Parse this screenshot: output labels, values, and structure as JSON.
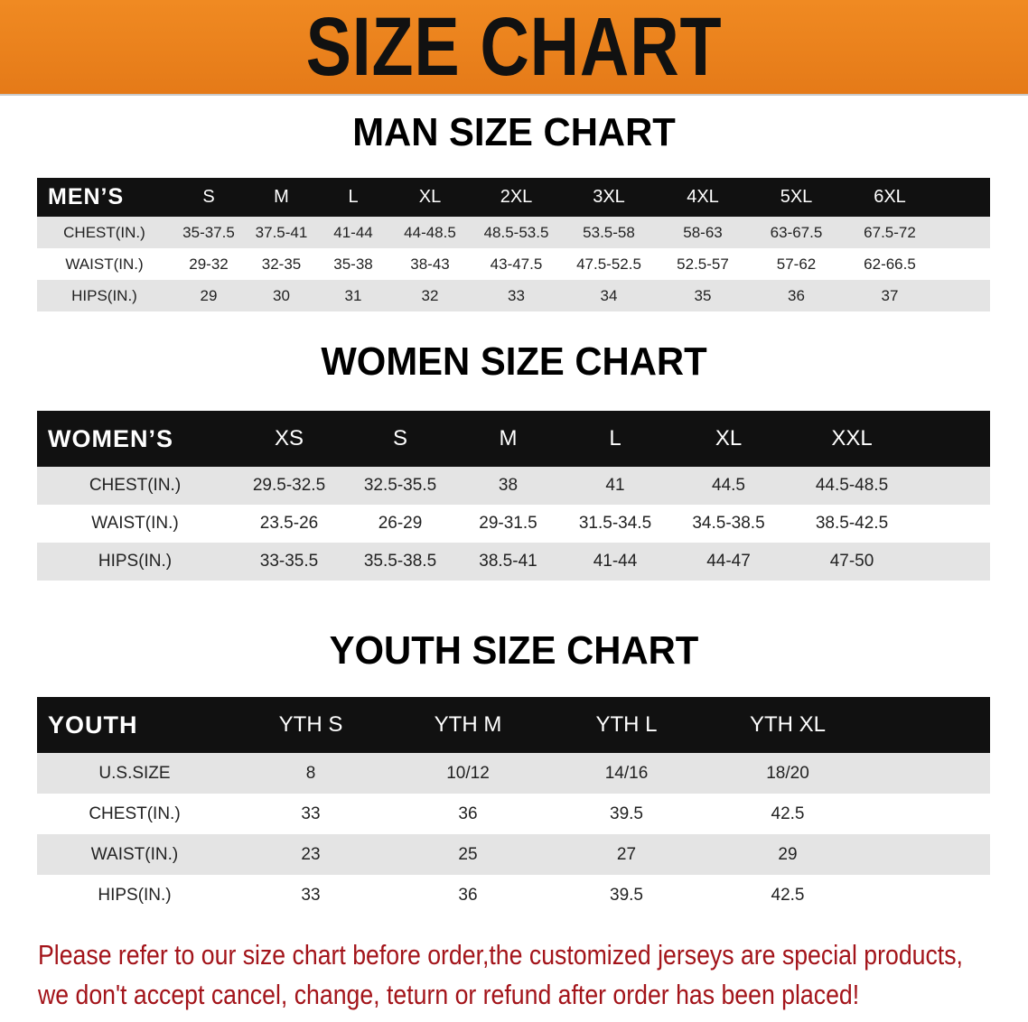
{
  "banner": {
    "title": "SIZE CHART",
    "color": "#e87e1f"
  },
  "men": {
    "title": "MAN SIZE CHART",
    "header": [
      "MEN’S",
      "S",
      "M",
      "L",
      "XL",
      "2XL",
      "3XL",
      "4XL",
      "5XL",
      "6XL"
    ],
    "rows": [
      [
        "CHEST(IN.)",
        "35-37.5",
        "37.5-41",
        "41-44",
        "44-48.5",
        "48.5-53.5",
        "53.5-58",
        "58-63",
        "63-67.5",
        "67.5-72"
      ],
      [
        "WAIST(IN.)",
        "29-32",
        "32-35",
        "35-38",
        "38-43",
        "43-47.5",
        "47.5-52.5",
        "52.5-57",
        "57-62",
        "62-66.5"
      ],
      [
        "HIPS(IN.)",
        "29",
        "30",
        "31",
        "32",
        "33",
        "34",
        "35",
        "36",
        "37"
      ]
    ]
  },
  "women": {
    "title": "WOMEN SIZE CHART",
    "header": [
      "WOMEN’S",
      "XS",
      "S",
      "M",
      "L",
      "XL",
      "XXL"
    ],
    "rows": [
      [
        "CHEST(IN.)",
        "29.5-32.5",
        "32.5-35.5",
        "38",
        "41",
        "44.5",
        "44.5-48.5"
      ],
      [
        "WAIST(IN.)",
        "23.5-26",
        "26-29",
        "29-31.5",
        "31.5-34.5",
        "34.5-38.5",
        "38.5-42.5"
      ],
      [
        "HIPS(IN.)",
        "33-35.5",
        "35.5-38.5",
        "38.5-41",
        "41-44",
        "44-47",
        "47-50"
      ]
    ]
  },
  "youth": {
    "title": "YOUTH SIZE CHART",
    "header": [
      "YOUTH",
      "YTH S",
      "YTH M",
      "YTH L",
      "YTH XL"
    ],
    "rows": [
      [
        "U.S.SIZE",
        "8",
        "10/12",
        "14/16",
        "18/20"
      ],
      [
        "CHEST(IN.)",
        "33",
        "36",
        "39.5",
        "42.5"
      ],
      [
        "WAIST(IN.)",
        "23",
        "25",
        "27",
        "29"
      ],
      [
        "HIPS(IN.)",
        "33",
        "36",
        "39.5",
        "42.5"
      ]
    ]
  },
  "note": {
    "line1": "Please refer to our size chart before order,the customized jerseys are special products,",
    "line2": "we don't accept cancel, change, teturn or refund after order has been placed!",
    "color": "#a3141a"
  }
}
